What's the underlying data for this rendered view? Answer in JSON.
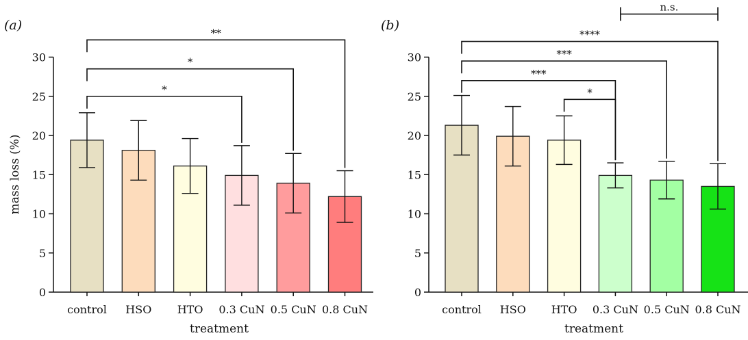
{
  "ylabel": "mass loss (%)",
  "xlabel": "treatment",
  "chart_data": [
    {
      "panel": "(a)",
      "type": "bar",
      "categories": [
        "control",
        "HSO",
        "HTO",
        "0.3 CuN",
        "0.5 CuN",
        "0.8 CuN"
      ],
      "values": [
        19.4,
        18.1,
        16.1,
        14.9,
        13.9,
        12.2
      ],
      "errors": [
        3.5,
        3.8,
        3.5,
        3.8,
        3.8,
        3.3
      ],
      "colors": [
        "#e7e0c3",
        "#fddcbc",
        "#fffde0",
        "#ffdfe0",
        "#ff9c9d",
        "#ff7d7d"
      ],
      "xlabel": "treatment",
      "ylabel": "mass loss (%)",
      "ylim": [
        0,
        30
      ],
      "yticks": [
        0,
        5,
        10,
        15,
        20,
        25,
        30
      ],
      "significance": [
        {
          "from": 0,
          "to": 3,
          "y": 25,
          "label": "*"
        },
        {
          "from": 0,
          "to": 4,
          "y": 28.5,
          "label": "*"
        },
        {
          "from": 0,
          "to": 5,
          "y": 32.2,
          "label": "**"
        }
      ]
    },
    {
      "panel": "(b)",
      "type": "bar",
      "categories": [
        "control",
        "HSO",
        "HTO",
        "0.3 CuN",
        "0.5 CuN",
        "0.8 CuN"
      ],
      "values": [
        21.3,
        19.9,
        19.4,
        14.9,
        14.3,
        13.5
      ],
      "errors": [
        3.8,
        3.8,
        3.1,
        1.6,
        2.4,
        2.9
      ],
      "colors": [
        "#e7e0c3",
        "#fddcbc",
        "#fffde0",
        "#ccffcc",
        "#a3ffa3",
        "#16e216"
      ],
      "xlabel": "treatment",
      "ylabel": "",
      "ylim": [
        0,
        30
      ],
      "yticks": [
        0,
        5,
        10,
        15,
        20,
        25,
        30
      ],
      "significance": [
        {
          "from": 2,
          "to": 3,
          "y": 24.6,
          "label": "*"
        },
        {
          "from": 0,
          "to": 3,
          "y": 27.0,
          "label": "***"
        },
        {
          "from": 0,
          "to": 4,
          "y": 29.5,
          "label": "***"
        },
        {
          "from": 0,
          "to": 5,
          "y": 32.0,
          "label": "****"
        },
        {
          "from": 3.1,
          "to": 5,
          "y": 35.5,
          "label": "n.s.",
          "both_ends_down": true
        }
      ]
    }
  ]
}
